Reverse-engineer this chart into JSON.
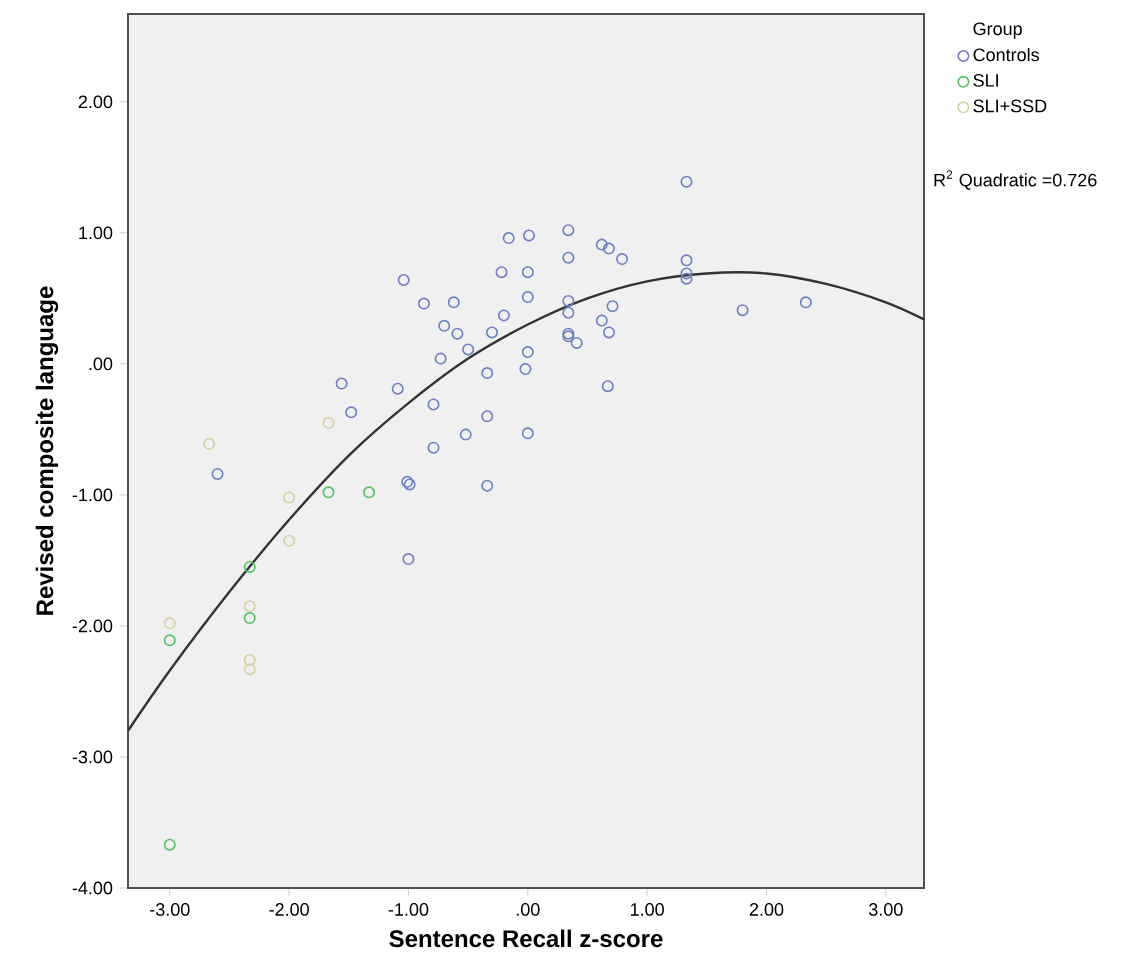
{
  "chart_data": {
    "type": "scatter",
    "xlabel": "Sentence Recall z-score",
    "ylabel": "Revised composite language",
    "legend_title": "Group",
    "legend": "top right",
    "marker": "circle",
    "grid": false,
    "xlim": [
      -3.35,
      3.32
    ],
    "ylim": [
      -4,
      2.67
    ],
    "xticks": [
      {
        "value": -3,
        "label": "-3.00"
      },
      {
        "value": -2,
        "label": "-2.00"
      },
      {
        "value": -1,
        "label": "-1.00"
      },
      {
        "value": 0,
        "label": ".00"
      },
      {
        "value": 1,
        "label": "1.00"
      },
      {
        "value": 2,
        "label": "2.00"
      },
      {
        "value": 3,
        "label": "3.00"
      }
    ],
    "yticks": [
      {
        "value": -4,
        "label": "-4.00"
      },
      {
        "value": -3,
        "label": "-3.00"
      },
      {
        "value": -2,
        "label": "-2.00"
      },
      {
        "value": -1,
        "label": "-1.00"
      },
      {
        "value": 0,
        "label": ".00"
      },
      {
        "value": 1,
        "label": "1.00"
      },
      {
        "value": 2,
        "label": "2.00"
      }
    ],
    "annotations": [
      "R$^{2}$ Quadratic =0.726"
    ],
    "series": [
      {
        "name": "Controls",
        "color": "#6b7fc4",
        "x": [
          -0.16,
          -0.22,
          -1.04,
          -0.87,
          -0.62,
          -0.2,
          -0.7,
          -0.59,
          -0.3,
          -0.5,
          -0.73,
          -0.34,
          -1.56,
          -1.09,
          -1.48,
          -0.79,
          -0.34,
          -0.52,
          -0.79,
          -2.6,
          -1.01,
          -0.99,
          -0.34,
          -1.0,
          1.33,
          0.01,
          0.34,
          0.62,
          0.68,
          0.79,
          0.34,
          1.33,
          1.33,
          1.33,
          0.0,
          0.0,
          0.34,
          0.34,
          0.71,
          0.62,
          0.68,
          0.34,
          0.34,
          0.41,
          1.8,
          2.33,
          0.0,
          -0.02,
          0.67,
          0.0
        ],
        "values": [
          0.96,
          0.7,
          0.64,
          0.46,
          0.47,
          0.37,
          0.29,
          0.23,
          0.24,
          0.11,
          0.04,
          -0.07,
          -0.15,
          -0.19,
          -0.37,
          -0.31,
          -0.4,
          -0.54,
          -0.64,
          -0.84,
          -0.9,
          -0.92,
          -0.93,
          -1.49,
          1.39,
          0.98,
          1.02,
          0.91,
          0.88,
          0.8,
          0.81,
          0.79,
          0.69,
          0.65,
          0.7,
          0.51,
          0.48,
          0.39,
          0.44,
          0.33,
          0.24,
          0.23,
          0.21,
          0.16,
          0.41,
          0.47,
          0.09,
          -0.04,
          -0.17,
          -0.53
        ]
      },
      {
        "name": "SLI",
        "color": "#4fc45f",
        "x": [
          -1.67,
          -1.33,
          -2.33,
          -2.33,
          -3.0,
          -3.0
        ],
        "values": [
          -0.98,
          -0.98,
          -1.55,
          -1.94,
          -2.11,
          -3.67
        ]
      },
      {
        "name": "SLI+SSD",
        "color": "#d6d0a0",
        "x": [
          -2.67,
          -1.67,
          -2.0,
          -2.0,
          -2.33,
          -2.33,
          -2.33,
          -3.0
        ],
        "values": [
          -0.61,
          -0.45,
          -1.02,
          -1.35,
          -1.85,
          -2.26,
          -2.33,
          -1.98
        ]
      },
      {
        "type": "line",
        "marker": "none",
        "color": "#333333",
        "x": [
          -3.35,
          -3,
          -2.5,
          -2,
          -1.5,
          -1,
          -0.5,
          0,
          0.5,
          1,
          1.5,
          2,
          2.5,
          3,
          3.32
        ],
        "values": [
          -2.8,
          -2.34,
          -1.74,
          -1.19,
          -0.7,
          -0.3,
          0.04,
          0.3,
          0.5,
          0.63,
          0.69,
          0.69,
          0.61,
          0.47,
          0.34
        ]
      }
    ]
  }
}
